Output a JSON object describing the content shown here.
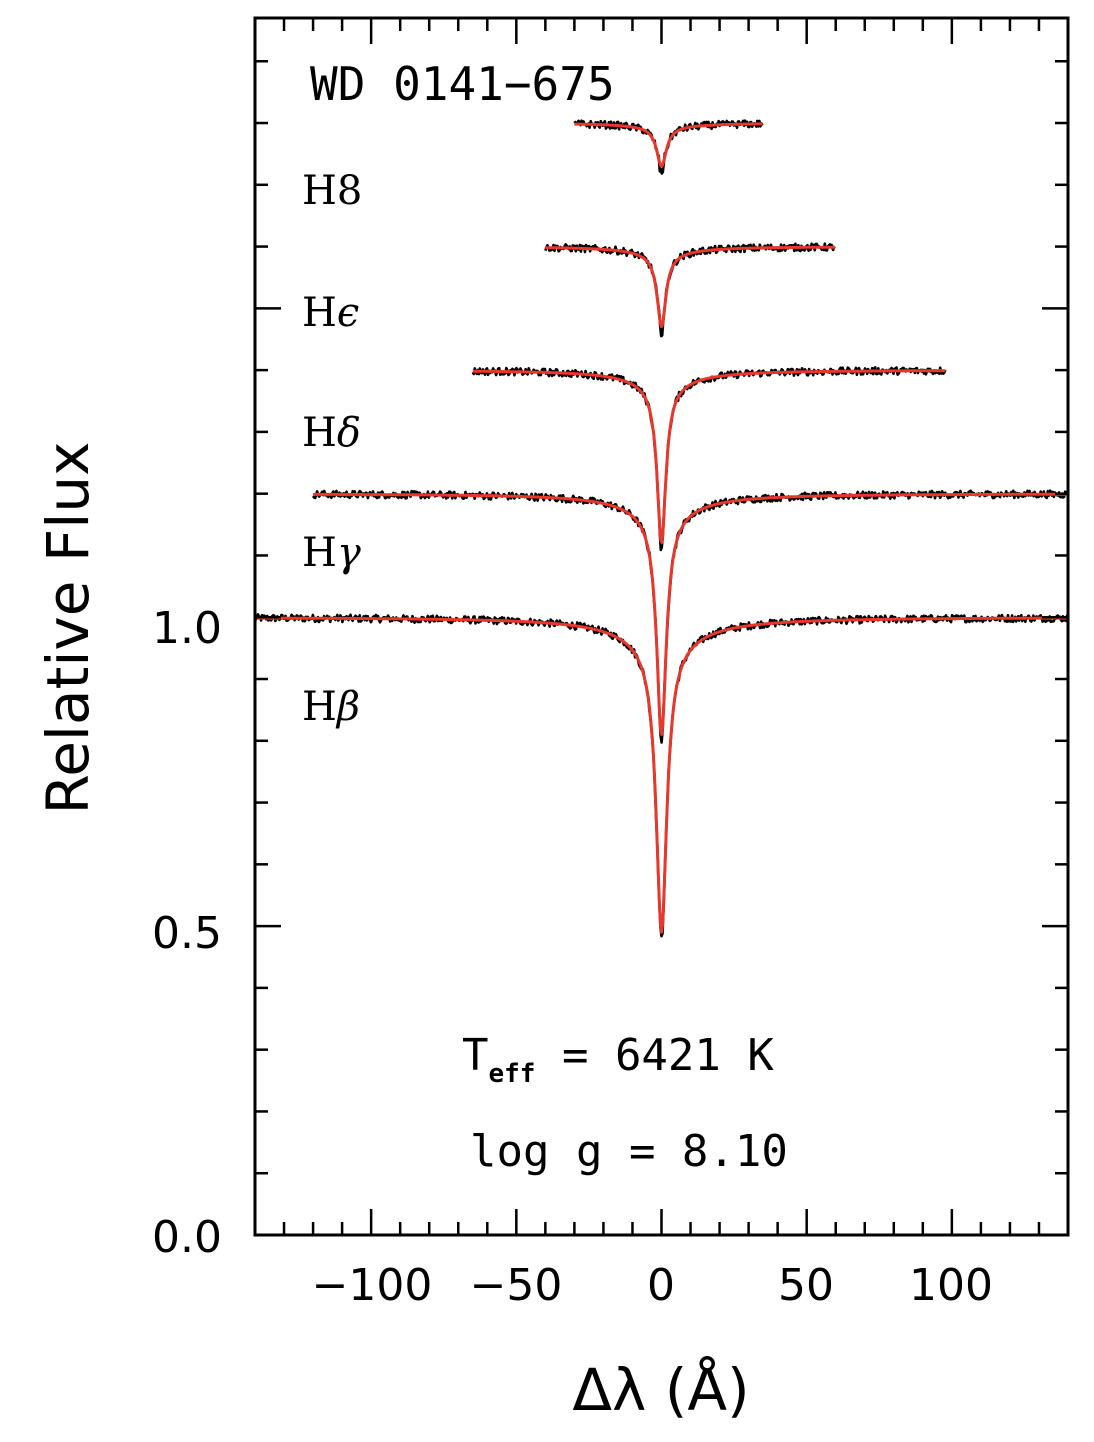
{
  "chart_data": {
    "type": "line",
    "title": "WD 0141−675",
    "xlabel": "Δλ (Å)",
    "ylabel": "Relative Flux",
    "xlim": [
      -140,
      140
    ],
    "ylim": [
      0.0,
      1.97
    ],
    "x_ticks": [
      -100,
      -50,
      0,
      50,
      100
    ],
    "x_tick_labels": [
      "−100",
      "−50",
      "0",
      "50",
      "100"
    ],
    "y_ticks": [
      0.0,
      0.5,
      1.0
    ],
    "y_tick_labels": [
      "0.0",
      "0.5",
      "1.0"
    ],
    "annotations": {
      "teff_symbol": "T",
      "teff_subscript": "eff",
      "teff_text": " = 6421 K",
      "logg_text": "log g = 8.10"
    },
    "series": [
      {
        "name": "Hβ",
        "label_base": "H",
        "label_greek": "β",
        "offset": 1.0,
        "x_range": [
          -140,
          140
        ],
        "depth": 0.51,
        "width": 2.2,
        "continuum": 1.0
      },
      {
        "name": "Hγ",
        "label_base": "H",
        "label_greek": "γ",
        "offset": 1.2,
        "x_range": [
          -120,
          140
        ],
        "depth": 0.39,
        "width": 2.0,
        "continuum": 1.2
      },
      {
        "name": "Hδ",
        "label_base": "H",
        "label_greek": "δ",
        "offset": 1.4,
        "x_range": [
          -65,
          98
        ],
        "depth": 0.28,
        "width": 1.8,
        "continuum": 1.4
      },
      {
        "name": "Hϵ",
        "label_base": "H",
        "label_greek": "ϵ",
        "offset": 1.6,
        "x_range": [
          -40,
          60
        ],
        "depth": 0.13,
        "width": 1.8,
        "continuum": 1.6
      },
      {
        "name": "H8",
        "label_base": "H",
        "label_greek": "8",
        "offset": 1.8,
        "x_range": [
          -30,
          35
        ],
        "depth": 0.07,
        "width": 2.0,
        "continuum": 1.8
      }
    ],
    "colors": {
      "observed": "#000000",
      "model": "#e8372c",
      "axes": "#000000"
    }
  }
}
